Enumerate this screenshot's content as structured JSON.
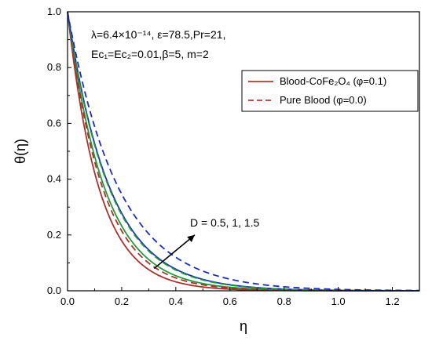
{
  "chart_data": {
    "type": "line",
    "xlabel": "η",
    "ylabel": "θ(η)",
    "xlim": [
      0,
      1.3
    ],
    "ylim": [
      0,
      1.0
    ],
    "xticks": [
      "0.0",
      "0.2",
      "0.4",
      "0.6",
      "0.8",
      "1.0",
      "1.2"
    ],
    "yticks": [
      "0.0",
      "0.2",
      "0.4",
      "0.6",
      "0.8",
      "1.0"
    ],
    "grid": false,
    "legend_position": "top-right",
    "legend": [
      {
        "label": "Blood-CoFe₂O₄ (φ=0.1)",
        "style": "solid",
        "color": "#b03a2e"
      },
      {
        "label": "Pure Blood (φ=0.0)",
        "style": "dashed",
        "color": "#b03a2e"
      }
    ],
    "parameters": {
      "line1": "λ=6.4×10⁻¹⁴, ε=78.5,Pr=21,",
      "line2": "Ec₁=Ec₂=0.01,β=5, m=2"
    },
    "arrow_label": "D = 0.5, 1, 1.5",
    "arrow_from": [
      0.32,
      0.08
    ],
    "arrow_to": [
      0.47,
      0.2
    ],
    "series": [
      {
        "d": "0.5",
        "phase": "Blood-CoFe₂O₄ (φ=0.1)",
        "style": "solid",
        "color": "#a8322a",
        "decay": 8.6
      },
      {
        "d": "1",
        "phase": "Blood-CoFe₂O₄ (φ=0.1)",
        "style": "solid",
        "color": "#1f9a3a",
        "decay": 7.3
      },
      {
        "d": "1.5",
        "phase": "Blood-CoFe₂O₄ (φ=0.1)",
        "style": "solid",
        "color": "#1c2fb8",
        "decay": 6.4
      },
      {
        "d": "0.5",
        "phase": "Pure Blood (φ=0.0)",
        "style": "dashed",
        "color": "#a8322a",
        "decay": 7.7
      },
      {
        "d": "1",
        "phase": "Pure Blood (φ=0.0)",
        "style": "dashed",
        "color": "#1f9a3a",
        "decay": 6.5
      },
      {
        "d": "1.5",
        "phase": "Pure Blood (φ=0.0)",
        "style": "dashed",
        "color": "#1c2fb8",
        "decay": 5.3
      }
    ]
  }
}
